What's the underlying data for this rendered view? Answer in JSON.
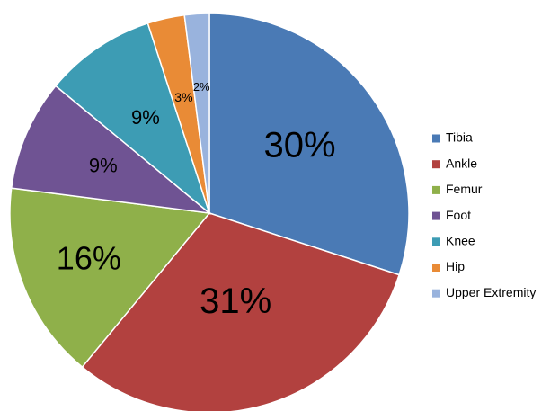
{
  "chart_data": {
    "type": "pie",
    "categories": [
      "Tibia",
      "Ankle",
      "Femur",
      "Foot",
      "Knee",
      "Hip",
      "Upper Extremity"
    ],
    "values": [
      30,
      31,
      16,
      9,
      9,
      3,
      2
    ],
    "value_labels": [
      "30%",
      "31%",
      "16%",
      "9%",
      "9%",
      "3%",
      "2%"
    ],
    "colors": [
      "#4a7ab5",
      "#b2413f",
      "#8fb04a",
      "#6f5393",
      "#3d9cb4",
      "#e98b36",
      "#99b3dd"
    ],
    "legend": "right"
  }
}
